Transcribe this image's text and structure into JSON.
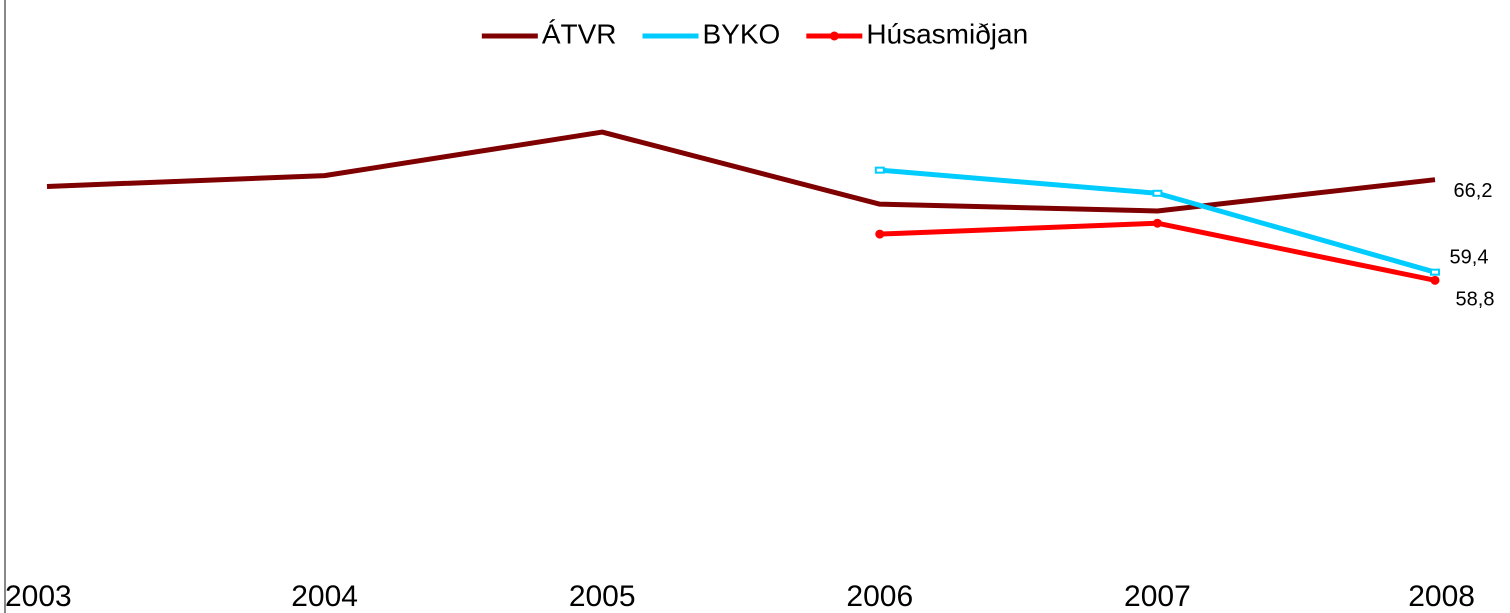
{
  "chart_data": {
    "type": "line",
    "categories": [
      "2003",
      "2004",
      "2005",
      "2006",
      "2007",
      "2008"
    ],
    "series": [
      {
        "name": "ÁTVR",
        "color": "#7f0000",
        "values": [
          65.7,
          66.5,
          69.7,
          64.4,
          63.9,
          66.2
        ],
        "value_labels": [
          null,
          null,
          null,
          null,
          null,
          "66,2"
        ]
      },
      {
        "name": "BYKO",
        "color": "#00ccff",
        "values": [
          null,
          null,
          null,
          66.9,
          65.2,
          59.4
        ],
        "value_labels": [
          null,
          null,
          null,
          null,
          null,
          "59,4"
        ]
      },
      {
        "name": "Húsasmiðjan",
        "color": "#ff0000",
        "values": [
          null,
          null,
          null,
          62.2,
          63.0,
          58.8
        ],
        "value_labels": [
          null,
          null,
          null,
          null,
          null,
          "58,8"
        ]
      }
    ],
    "ylim": [
      40,
      75
    ],
    "legend": "top"
  }
}
